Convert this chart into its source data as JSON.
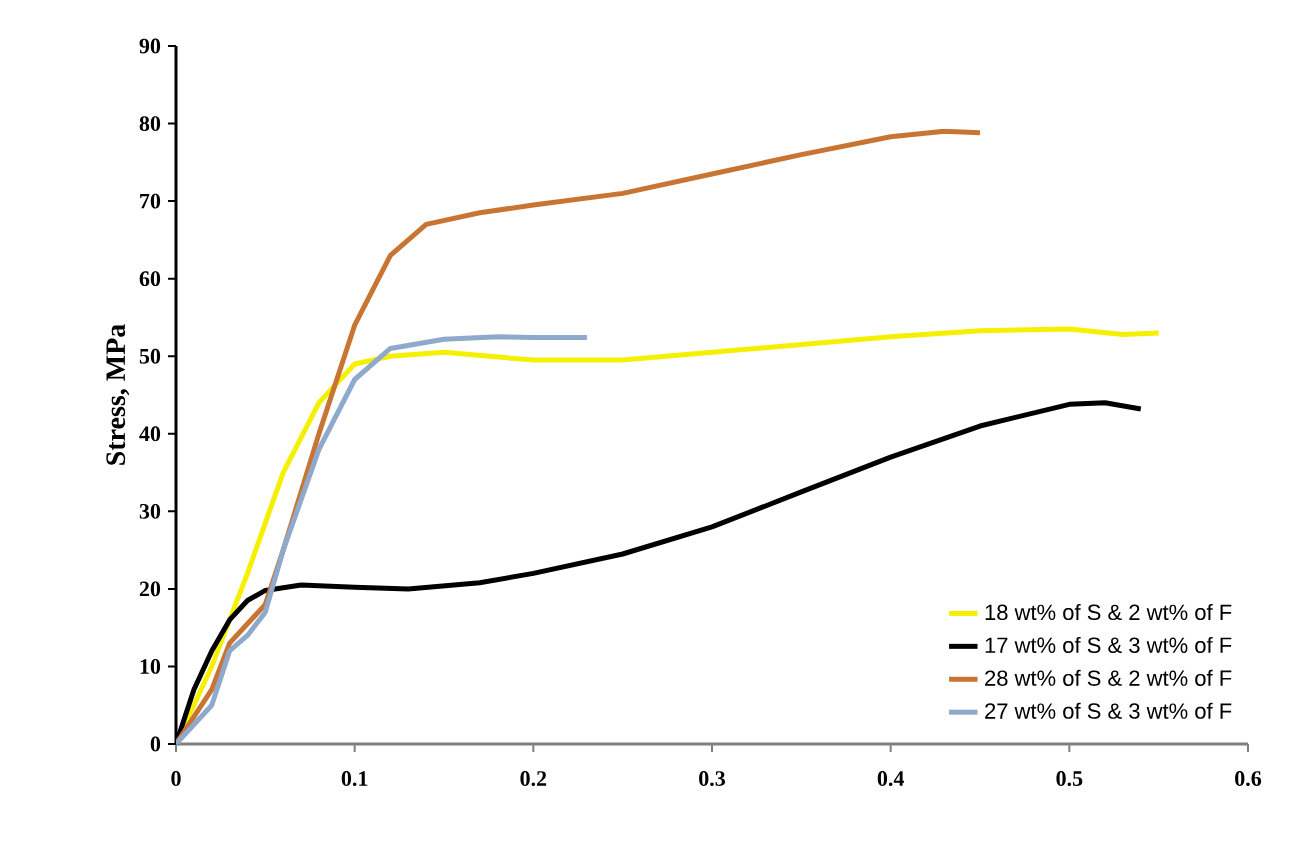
{
  "chart_data": {
    "type": "line",
    "ylabel": "Stress, MPa",
    "xlim": [
      0,
      0.6
    ],
    "ylim": [
      0,
      90
    ],
    "xticks": [
      0,
      0.1,
      0.2,
      0.3,
      0.4,
      0.5,
      0.6
    ],
    "yticks": [
      0,
      10,
      20,
      30,
      40,
      50,
      60,
      70,
      80,
      90
    ],
    "grid": false,
    "legend": "bottom right",
    "marker": "none",
    "line_style": "solid",
    "series": [
      {
        "name": "18 wt% of S & 2 wt% of F",
        "color": "#f5f000",
        "x": [
          0,
          0.02,
          0.04,
          0.06,
          0.08,
          0.1,
          0.12,
          0.15,
          0.2,
          0.25,
          0.3,
          0.35,
          0.4,
          0.45,
          0.5,
          0.53,
          0.55
        ],
        "values": [
          0,
          10,
          22,
          35,
          44,
          49,
          50,
          50.5,
          49.5,
          49.5,
          50.5,
          51.5,
          52.5,
          53.3,
          53.5,
          52.8,
          53
        ]
      },
      {
        "name": "17 wt% of S & 3 wt% of F",
        "color": "#000000",
        "x": [
          0,
          0.01,
          0.02,
          0.03,
          0.04,
          0.05,
          0.07,
          0.1,
          0.13,
          0.17,
          0.2,
          0.25,
          0.3,
          0.35,
          0.4,
          0.45,
          0.5,
          0.52,
          0.54
        ],
        "values": [
          0,
          7,
          12,
          16,
          18.5,
          19.8,
          20.5,
          20.2,
          20,
          20.8,
          22,
          24.5,
          28,
          32.5,
          37,
          41,
          43.8,
          44,
          43.2
        ]
      },
      {
        "name": "28 wt% of S & 2 wt% of F",
        "color": "#c87533",
        "x": [
          0,
          0.02,
          0.03,
          0.05,
          0.06,
          0.08,
          0.1,
          0.12,
          0.14,
          0.17,
          0.2,
          0.25,
          0.3,
          0.35,
          0.4,
          0.43,
          0.45
        ],
        "values": [
          0,
          7,
          13,
          18,
          25,
          40,
          54,
          63,
          67,
          68.5,
          69.5,
          71,
          73.5,
          76,
          78.3,
          79,
          78.8
        ]
      },
      {
        "name": "27 wt% of S & 3 wt% of F",
        "color": "#8ea9cc",
        "x": [
          0,
          0.02,
          0.03,
          0.04,
          0.05,
          0.06,
          0.08,
          0.1,
          0.12,
          0.15,
          0.18,
          0.2,
          0.23
        ],
        "values": [
          0,
          5,
          12,
          14,
          17,
          25,
          38,
          47,
          51,
          52.2,
          52.5,
          52.4,
          52.4
        ]
      }
    ]
  }
}
